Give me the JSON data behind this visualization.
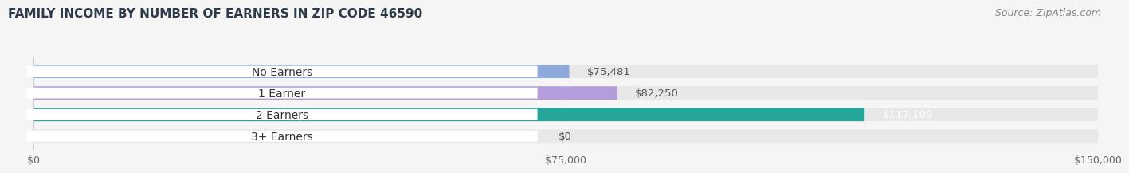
{
  "title": "FAMILY INCOME BY NUMBER OF EARNERS IN ZIP CODE 46590",
  "source": "Source: ZipAtlas.com",
  "categories": [
    "No Earners",
    "1 Earner",
    "2 Earners",
    "3+ Earners"
  ],
  "values": [
    75481,
    82250,
    117109,
    0
  ],
  "bar_colors": [
    "#8eaadb",
    "#b39ddb",
    "#26a69a",
    "#b0bcd8"
  ],
  "bar_bg_color": "#e8e8e8",
  "value_labels": [
    "$75,481",
    "$82,250",
    "$117,109",
    "$0"
  ],
  "value_label_colors": [
    "#555555",
    "#555555",
    "#ffffff",
    "#555555"
  ],
  "x_ticks": [
    0,
    75000,
    150000
  ],
  "x_tick_labels": [
    "$0",
    "$75,000",
    "$150,000"
  ],
  "xlim": [
    0,
    150000
  ],
  "background_color": "#f5f5f5",
  "bar_height": 0.62,
  "title_fontsize": 11,
  "source_fontsize": 9,
  "label_fontsize": 10,
  "value_fontsize": 9.5
}
